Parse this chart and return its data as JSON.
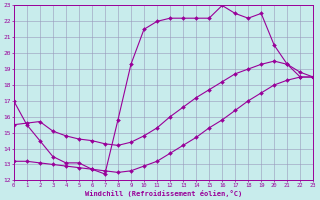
{
  "xlabel": "Windchill (Refroidissement éolien,°C)",
  "bg_color": "#c8ecec",
  "line_color": "#990099",
  "grid_color": "#9999bb",
  "xlim": [
    0,
    23
  ],
  "ylim": [
    12,
    23
  ],
  "xticks": [
    0,
    1,
    2,
    3,
    4,
    5,
    6,
    7,
    8,
    9,
    10,
    11,
    12,
    13,
    14,
    15,
    16,
    17,
    18,
    19,
    20,
    21,
    22,
    23
  ],
  "yticks": [
    12,
    13,
    14,
    15,
    16,
    17,
    18,
    19,
    20,
    21,
    22,
    23
  ],
  "line1_x": [
    0,
    1,
    2,
    3,
    4,
    5,
    6,
    7,
    8,
    9,
    10,
    11,
    12,
    13,
    14,
    15,
    16,
    17,
    18,
    19,
    20,
    21,
    22,
    23
  ],
  "line1_y": [
    17.0,
    15.5,
    14.5,
    13.5,
    13.1,
    13.1,
    12.7,
    12.4,
    15.8,
    19.3,
    21.5,
    22.0,
    22.2,
    22.2,
    22.2,
    22.2,
    23.0,
    22.5,
    22.2,
    22.5,
    20.5,
    19.3,
    18.5,
    18.5
  ],
  "line2_x": [
    0,
    1,
    2,
    3,
    4,
    5,
    6,
    7,
    8,
    9,
    10,
    11,
    12,
    13,
    14,
    15,
    16,
    17,
    18,
    19,
    20,
    21,
    22,
    23
  ],
  "line2_y": [
    15.5,
    15.6,
    15.7,
    15.1,
    14.8,
    14.6,
    14.5,
    14.3,
    14.2,
    14.4,
    14.8,
    15.3,
    16.0,
    16.6,
    17.2,
    17.7,
    18.2,
    18.7,
    19.0,
    19.3,
    19.5,
    19.3,
    18.8,
    18.5
  ],
  "line3_x": [
    0,
    1,
    2,
    3,
    4,
    5,
    6,
    7,
    8,
    9,
    10,
    11,
    12,
    13,
    14,
    15,
    16,
    17,
    18,
    19,
    20,
    21,
    22,
    23
  ],
  "line3_y": [
    13.2,
    13.2,
    13.1,
    13.0,
    12.9,
    12.8,
    12.7,
    12.6,
    12.5,
    12.6,
    12.9,
    13.2,
    13.7,
    14.2,
    14.7,
    15.3,
    15.8,
    16.4,
    17.0,
    17.5,
    18.0,
    18.3,
    18.5,
    18.5
  ],
  "marker": "D",
  "markersize": 2.0,
  "linewidth": 0.8
}
